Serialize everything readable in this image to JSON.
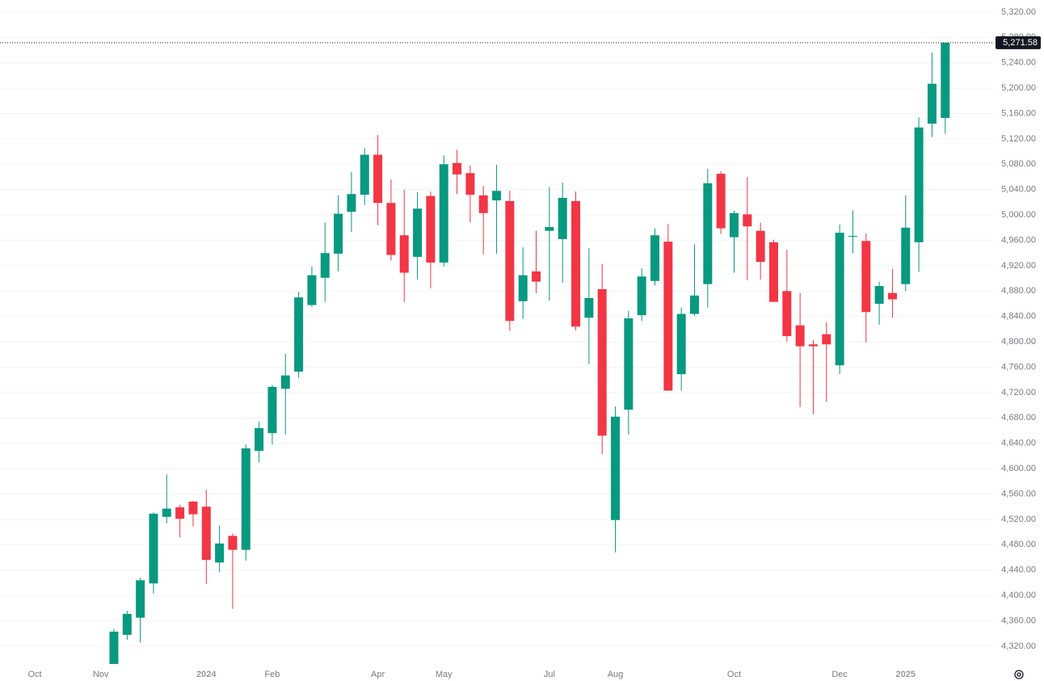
{
  "chart_data": {
    "type": "candlestick",
    "up_color": "#089981",
    "down_color": "#f23645",
    "grid": true,
    "categories": [
      "Oct",
      null,
      null,
      null,
      null,
      "Nov",
      null,
      null,
      null,
      null,
      null,
      null,
      null,
      "2024",
      null,
      null,
      null,
      null,
      "Feb",
      null,
      null,
      null,
      null,
      null,
      null,
      null,
      "Apr",
      null,
      null,
      null,
      null,
      "May",
      null,
      null,
      null,
      null,
      null,
      null,
      null,
      "Jul",
      null,
      null,
      null,
      null,
      "Aug",
      null,
      null,
      null,
      null,
      null,
      null,
      null,
      null,
      "Oct",
      null,
      null,
      null,
      null,
      null,
      null,
      null,
      "Dec",
      null,
      null,
      null,
      null,
      "2025",
      null,
      null,
      null
    ],
    "open": [
      null,
      null,
      null,
      null,
      null,
      null,
      4292,
      4338,
      4365,
      4419,
      4524,
      4539,
      4548,
      4540,
      4452,
      4494,
      4472,
      4628,
      4656,
      4726,
      4753,
      4858,
      4901,
      4939,
      5005,
      5032,
      5095,
      5019,
      4968,
      4934,
      5030,
      4925,
      5082,
      5066,
      5031,
      5023,
      5022,
      4864,
      4911,
      4975,
      4962,
      5022,
      4838,
      4883,
      4519,
      4693,
      4842,
      4896,
      4958,
      4749,
      4844,
      4891,
      5065,
      4965,
      5001,
      4975,
      4957,
      4880,
      4826,
      4796,
      4812,
      4763,
      4966,
      4959,
      4860,
      4877,
      4891,
      4957,
      5144,
      5153
    ],
    "high": [
      null,
      null,
      null,
      null,
      null,
      null,
      4347,
      4376,
      4428,
      4531,
      4591,
      4543,
      4549,
      4567,
      4510,
      4498,
      4638,
      4674,
      4732,
      4781,
      4879,
      4919,
      4988,
      5031,
      5068,
      5106,
      5126,
      5056,
      5040,
      5036,
      5037,
      5094,
      5103,
      5078,
      5046,
      5079,
      5038,
      4949,
      4975,
      5044,
      5051,
      5037,
      4948,
      4923,
      4698,
      4849,
      4916,
      4979,
      4986,
      4854,
      4954,
      5073,
      5069,
      5007,
      5060,
      4988,
      4961,
      4945,
      4877,
      4803,
      4831,
      4985,
      5007,
      4971,
      4895,
      4915,
      5031,
      5154,
      5256,
      5271.58
    ],
    "low": [
      null,
      null,
      null,
      null,
      null,
      null,
      4292,
      4330,
      4326,
      4403,
      4514,
      4492,
      4509,
      4418,
      4437,
      4379,
      4455,
      4610,
      4638,
      4654,
      4743,
      4855,
      4863,
      4911,
      4973,
      5016,
      4984,
      4928,
      4863,
      4898,
      4884,
      4919,
      5033,
      4988,
      4938,
      4939,
      4817,
      4836,
      4877,
      4865,
      4893,
      4818,
      4765,
      4623,
      4468,
      4654,
      4833,
      4889,
      4723,
      4723,
      4841,
      4854,
      4970,
      4909,
      4897,
      4898,
      4863,
      4800,
      4697,
      4686,
      4705,
      4749,
      4940,
      4799,
      4827,
      4838,
      4880,
      4910,
      5123,
      5128
    ],
    "close": [
      null,
      null,
      null,
      null,
      null,
      null,
      4343,
      4371,
      4424,
      4529,
      4537,
      4521,
      4528,
      4456,
      4482,
      4472,
      4632,
      4664,
      4729,
      4747,
      4870,
      4905,
      4940,
      5002,
      5033,
      5095,
      5019,
      4937,
      4909,
      5010,
      4925,
      5080,
      5064,
      5032,
      5003,
      5038,
      4833,
      4905,
      4895,
      4981,
      5027,
      4824,
      4869,
      4652,
      4682,
      4837,
      4903,
      4968,
      4723,
      4844,
      4873,
      5050,
      4979,
      5003,
      4982,
      4926,
      4863,
      4809,
      4793,
      4793,
      4796,
      4972,
      4967,
      4847,
      4888,
      4867,
      4980,
      5138,
      5207,
      5271.58
    ],
    "last_price_label": "5,271.58",
    "ylim": [
      4290,
      5339
    ],
    "yticks": [
      {
        "value": 4320,
        "label": "4,320.00"
      },
      {
        "value": 4360,
        "label": "4,360.00"
      },
      {
        "value": 4400,
        "label": "4,400.00"
      },
      {
        "value": 4440,
        "label": "4,440.00"
      },
      {
        "value": 4480,
        "label": "4,480.00"
      },
      {
        "value": 4520,
        "label": "4,520.00"
      },
      {
        "value": 4560,
        "label": "4,560.00"
      },
      {
        "value": 4600,
        "label": "4,600.00"
      },
      {
        "value": 4640,
        "label": "4,640.00"
      },
      {
        "value": 4680,
        "label": "4,680.00"
      },
      {
        "value": 4720,
        "label": "4,720.00"
      },
      {
        "value": 4760,
        "label": "4,760.00"
      },
      {
        "value": 4800,
        "label": "4,800.00"
      },
      {
        "value": 4840,
        "label": "4,840.00"
      },
      {
        "value": 4880,
        "label": "4,880.00"
      },
      {
        "value": 4920,
        "label": "4,920.00"
      },
      {
        "value": 4960,
        "label": "4,960.00"
      },
      {
        "value": 5000,
        "label": "5,000.00"
      },
      {
        "value": 5040,
        "label": "5,040.00"
      },
      {
        "value": 5080,
        "label": "5,080.00"
      },
      {
        "value": 5120,
        "label": "5,120.00"
      },
      {
        "value": 5160,
        "label": "5,160.00"
      },
      {
        "value": 5200,
        "label": "5,200.00"
      },
      {
        "value": 5240,
        "label": "5,240.00"
      },
      {
        "value": 5280,
        "label": "5,280.00"
      },
      {
        "value": 5320,
        "label": "5,320.00"
      }
    ]
  }
}
